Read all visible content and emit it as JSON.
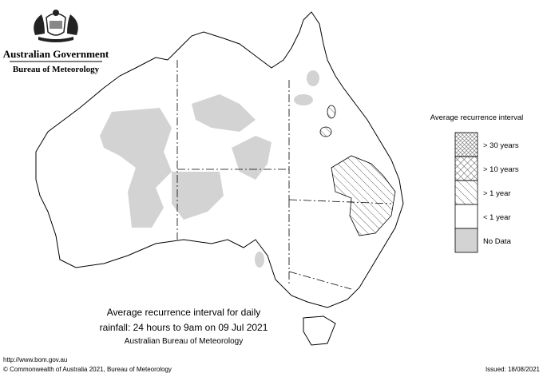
{
  "header": {
    "government": "Australian Government",
    "agency": "Bureau of Meteorology"
  },
  "legend": {
    "title": "Average recurrence interval",
    "items": [
      "> 30 years",
      "> 10 years",
      "> 1 year",
      "< 1 year",
      "No Data"
    ]
  },
  "caption": {
    "line1": "Average recurrence interval for daily",
    "line2": "rainfall: 24 hours to 9am on 09 Jul 2021",
    "source": "Australian Bureau of Meteorology"
  },
  "footer": {
    "url": "http://www.bom.gov.au",
    "copyright": "© Commonwealth of Australia 2021, Bureau of Meteorology",
    "issued": "Issued: 18/08/2021"
  }
}
